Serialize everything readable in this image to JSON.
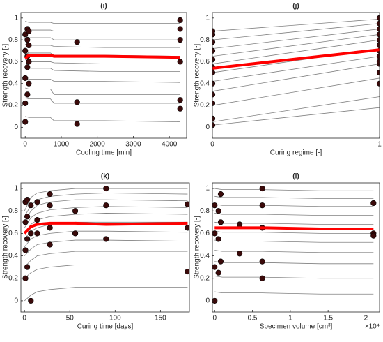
{
  "chart_data": [
    {
      "type": "line",
      "title": "(i)",
      "xlabel": "Cooling time [min]",
      "ylabel": "Strength recovery [-]",
      "xlim": [
        -120,
        4480
      ],
      "xticks": [
        0,
        1000,
        2000,
        3000,
        4000
      ],
      "ylim": [
        -0.1,
        1.05
      ],
      "yticks": [
        0,
        0.2,
        0.4,
        0.6,
        0.8,
        1
      ],
      "x": [
        0,
        100,
        700,
        800,
        2200,
        4300
      ],
      "series": [
        {
          "color": "#808080",
          "values": [
            0.97,
            0.96,
            0.96,
            0.95,
            0.95,
            0.95
          ]
        },
        {
          "color": "#808080",
          "values": [
            0.9,
            0.89,
            0.89,
            0.88,
            0.88,
            0.88
          ]
        },
        {
          "color": "#808080",
          "values": [
            0.84,
            0.82,
            0.82,
            0.8,
            0.8,
            0.8
          ]
        },
        {
          "color": "#808080",
          "values": [
            0.76,
            0.75,
            0.75,
            0.74,
            0.73,
            0.73
          ]
        },
        {
          "color": "#808080",
          "values": [
            0.7,
            0.68,
            0.68,
            0.66,
            0.66,
            0.65
          ]
        },
        {
          "color": "#808080",
          "values": [
            0.62,
            0.6,
            0.6,
            0.59,
            0.58,
            0.58
          ]
        },
        {
          "color": "#808080",
          "values": [
            0.55,
            0.54,
            0.54,
            0.52,
            0.51,
            0.51
          ]
        },
        {
          "color": "#808080",
          "values": [
            0.45,
            0.44,
            0.44,
            0.42,
            0.42,
            0.41
          ]
        },
        {
          "color": "#808080",
          "values": [
            0.36,
            0.35,
            0.35,
            0.3,
            0.3,
            0.3
          ]
        },
        {
          "color": "#808080",
          "values": [
            0.27,
            0.26,
            0.26,
            0.22,
            0.22,
            0.22
          ]
        },
        {
          "color": "#808080",
          "values": [
            0.1,
            0.09,
            0.09,
            0.06,
            0.06,
            0.05
          ]
        }
      ],
      "mean": {
        "color": "#ff0000",
        "values": [
          0.63,
          0.66,
          0.66,
          0.65,
          0.65,
          0.64
        ]
      },
      "points": {
        "color": "#3b0a0a",
        "x": [
          0,
          0,
          0,
          0,
          0,
          60,
          60,
          60,
          60,
          60,
          100,
          100,
          100,
          100,
          1440,
          1440,
          1440,
          4300,
          4300,
          4300,
          4300,
          4300,
          4300
        ],
        "y": [
          0.05,
          0.22,
          0.45,
          0.7,
          0.85,
          0.3,
          0.55,
          0.65,
          0.8,
          0.9,
          0.4,
          0.6,
          0.75,
          0.88,
          0.78,
          0.23,
          0.03,
          0.98,
          0.9,
          0.8,
          0.6,
          0.25,
          0.17
        ]
      }
    },
    {
      "type": "line",
      "title": "(j)",
      "xlabel": "Curing regime [-]",
      "ylabel": "Strength recovery [-]",
      "xlim": [
        0,
        1
      ],
      "xticks": [
        0,
        1
      ],
      "ylim": [
        -0.1,
        1.05
      ],
      "yticks": [
        0,
        0.2,
        0.4,
        0.6,
        0.8,
        1
      ],
      "x": [
        0,
        1
      ],
      "series": [
        {
          "color": "#808080",
          "values": [
            0.88,
            0.99
          ]
        },
        {
          "color": "#808080",
          "values": [
            0.8,
            0.95
          ]
        },
        {
          "color": "#808080",
          "values": [
            0.72,
            0.9
          ]
        },
        {
          "color": "#808080",
          "values": [
            0.65,
            0.85
          ]
        },
        {
          "color": "#808080",
          "values": [
            0.58,
            0.8
          ]
        },
        {
          "color": "#808080",
          "values": [
            0.5,
            0.72
          ]
        },
        {
          "color": "#808080",
          "values": [
            0.42,
            0.65
          ]
        },
        {
          "color": "#808080",
          "values": [
            0.33,
            0.58
          ]
        },
        {
          "color": "#808080",
          "values": [
            0.2,
            0.45
          ]
        },
        {
          "color": "#808080",
          "values": [
            0.05,
            0.28
          ]
        },
        {
          "color": "#808080",
          "values": [
            0.02,
            0.18
          ]
        }
      ],
      "mean": {
        "color": "#ff0000",
        "values": [
          0.54,
          0.71
        ]
      },
      "points": {
        "color": "#3b0a0a",
        "x": [
          0,
          0,
          0,
          0,
          0,
          0,
          0,
          0,
          0,
          0,
          0,
          0,
          1,
          1,
          1,
          1,
          1,
          1,
          1,
          1,
          1,
          1,
          1,
          1
        ],
        "y": [
          0.02,
          0.08,
          0.22,
          0.3,
          0.4,
          0.5,
          0.55,
          0.62,
          0.7,
          0.78,
          0.85,
          0.88,
          0.4,
          0.5,
          0.58,
          0.65,
          0.7,
          0.75,
          0.8,
          0.85,
          0.9,
          0.95,
          1.0,
          0.6
        ]
      }
    },
    {
      "type": "line",
      "title": "(k)",
      "xlabel": "Curing time [days]",
      "ylabel": "Strength recovery [-]",
      "xlim": [
        -4,
        182
      ],
      "xticks": [
        0,
        50,
        100,
        150
      ],
      "ylim": [
        -0.1,
        1.05
      ],
      "yticks": [
        0,
        0.2,
        0.4,
        0.6,
        0.8,
        1
      ],
      "x": [
        0,
        7,
        14,
        28,
        56,
        90,
        180
      ],
      "series": [
        {
          "color": "#808080",
          "values": [
            0.8,
            0.92,
            0.96,
            0.98,
            1.0,
            1.0,
            1.0
          ]
        },
        {
          "color": "#808080",
          "values": [
            0.75,
            0.85,
            0.9,
            0.93,
            0.95,
            0.96,
            0.95
          ]
        },
        {
          "color": "#808080",
          "values": [
            0.7,
            0.8,
            0.85,
            0.88,
            0.9,
            0.9,
            0.89
          ]
        },
        {
          "color": "#808080",
          "values": [
            0.65,
            0.74,
            0.78,
            0.81,
            0.83,
            0.84,
            0.83
          ]
        },
        {
          "color": "#808080",
          "values": [
            0.6,
            0.68,
            0.72,
            0.75,
            0.77,
            0.78,
            0.77
          ]
        },
        {
          "color": "#808080",
          "values": [
            0.55,
            0.62,
            0.65,
            0.68,
            0.7,
            0.7,
            0.7
          ]
        },
        {
          "color": "#808080",
          "values": [
            0.48,
            0.55,
            0.58,
            0.6,
            0.62,
            0.62,
            0.61
          ]
        },
        {
          "color": "#808080",
          "values": [
            0.4,
            0.46,
            0.5,
            0.52,
            0.54,
            0.54,
            0.53
          ]
        },
        {
          "color": "#808080",
          "values": [
            0.3,
            0.36,
            0.4,
            0.42,
            0.44,
            0.44,
            0.44
          ]
        },
        {
          "color": "#808080",
          "values": [
            0.2,
            0.25,
            0.28,
            0.3,
            0.32,
            0.32,
            0.32
          ]
        },
        {
          "color": "#808080",
          "values": [
            0.0,
            0.05,
            0.08,
            0.1,
            0.12,
            0.12,
            0.12
          ]
        }
      ],
      "mean": {
        "color": "#ff0000",
        "values": [
          0.6,
          0.66,
          0.68,
          0.69,
          0.69,
          0.68,
          0.69
        ]
      },
      "points": {
        "color": "#3b0a0a",
        "x": [
          1,
          1,
          1,
          1,
          3,
          3,
          3,
          3,
          7,
          7,
          7,
          14,
          14,
          14,
          28,
          28,
          28,
          28,
          56,
          56,
          90,
          90,
          90,
          180,
          180,
          180
        ],
        "y": [
          0.2,
          0.45,
          0.7,
          0.88,
          0.3,
          0.55,
          0.75,
          0.9,
          0.0,
          0.6,
          0.85,
          0.6,
          0.72,
          0.88,
          0.5,
          0.65,
          0.85,
          0.95,
          0.6,
          0.8,
          0.55,
          0.85,
          1.0,
          0.26,
          0.65,
          0.86
        ]
      }
    },
    {
      "type": "line",
      "title": "(l)",
      "xlabel": "Specimen volume [cm³]",
      "ylabel": "Strength recovery [-]",
      "x_multiplier": "×10⁴",
      "xlim": [
        -300,
        21800
      ],
      "xticks": [
        0,
        {
          "value": 5000,
          "label": "0.5"
        },
        {
          "value": 10000,
          "label": "1"
        },
        {
          "value": 15000,
          "label": "1.5"
        },
        {
          "value": 20000,
          "label": "2"
        }
      ],
      "ylim": [
        -0.1,
        1.05
      ],
      "yticks": [
        0,
        0.2,
        0.4,
        0.6,
        0.8,
        1
      ],
      "x": [
        0,
        1000,
        6300,
        14000,
        21000
      ],
      "series": [
        {
          "color": "#808080",
          "values": [
            1.0,
            0.99,
            0.99,
            0.98,
            0.98
          ]
        },
        {
          "color": "#808080",
          "values": [
            0.93,
            0.92,
            0.92,
            0.91,
            0.91
          ]
        },
        {
          "color": "#808080",
          "values": [
            0.86,
            0.85,
            0.85,
            0.84,
            0.84
          ]
        },
        {
          "color": "#808080",
          "values": [
            0.78,
            0.77,
            0.77,
            0.76,
            0.76
          ]
        },
        {
          "color": "#808080",
          "values": [
            0.7,
            0.69,
            0.69,
            0.68,
            0.68
          ]
        },
        {
          "color": "#808080",
          "values": [
            0.62,
            0.61,
            0.61,
            0.6,
            0.6
          ]
        },
        {
          "color": "#808080",
          "values": [
            0.54,
            0.53,
            0.53,
            0.52,
            0.52
          ]
        },
        {
          "color": "#808080",
          "values": [
            0.45,
            0.44,
            0.44,
            0.43,
            0.43
          ]
        },
        {
          "color": "#808080",
          "values": [
            0.35,
            0.34,
            0.34,
            0.33,
            0.33
          ]
        },
        {
          "color": "#808080",
          "values": [
            0.22,
            0.21,
            0.21,
            0.2,
            0.2
          ]
        },
        {
          "color": "#808080",
          "values": [
            0.08,
            0.07,
            0.07,
            0.06,
            0.06
          ]
        }
      ],
      "mean": {
        "color": "#ff0000",
        "values": [
          0.65,
          0.65,
          0.65,
          0.64,
          0.64
        ]
      },
      "points": {
        "color": "#3b0a0a",
        "x": [
          0,
          0,
          0,
          0,
          500,
          500,
          500,
          800,
          800,
          800,
          3300,
          3300,
          6300,
          6300,
          6300,
          6300,
          6300,
          21000,
          21000,
          21000
        ],
        "y": [
          0.0,
          0.3,
          0.6,
          0.85,
          0.25,
          0.55,
          0.8,
          0.35,
          0.7,
          0.95,
          0.68,
          0.42,
          0.2,
          0.35,
          0.65,
          0.85,
          1.0,
          0.87,
          0.6,
          0.58
        ]
      }
    }
  ]
}
